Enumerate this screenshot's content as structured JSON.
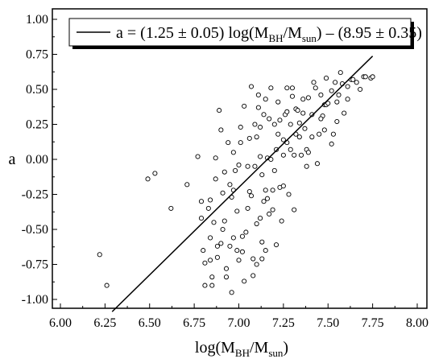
{
  "chart_data": {
    "type": "scatter",
    "xlabel": {
      "prefix": "log(M",
      "sub1": "BH",
      "mid": "/M",
      "sub2": "sun",
      "suffix": ")"
    },
    "ylabel": "a",
    "xlim": [
      6.0,
      8.0
    ],
    "ylim": [
      -1.1,
      1.1
    ],
    "x_ticks": [
      "6.00",
      "6.25",
      "6.50",
      "6.75",
      "7.00",
      "7.25",
      "7.50",
      "7.75",
      "8.00"
    ],
    "y_ticks": [
      "-1.00",
      "-0.75",
      "-0.50",
      "-0.25",
      "0.00",
      "0.25",
      "0.50",
      "0.75",
      "1.00"
    ],
    "grid": false,
    "legend": {
      "placement": "top-right",
      "prefix": "a = (1.25 ± 0.05) log(M",
      "sub1": "BH",
      "mid": "/M",
      "sub2": "sun",
      "suffix": ") – (8.95 ± 0.35)"
    },
    "fit_line": {
      "slope": 1.25,
      "intercept": -8.95,
      "x_range": [
        6.29,
        7.75
      ]
    },
    "series": [
      {
        "marker": "open-circle",
        "points": [
          [
            6.22,
            -0.68
          ],
          [
            6.26,
            -0.9
          ],
          [
            6.49,
            -0.14
          ],
          [
            6.53,
            -0.1
          ],
          [
            6.62,
            -0.35
          ],
          [
            6.71,
            -0.18
          ],
          [
            6.77,
            0.02
          ],
          [
            6.79,
            -0.3
          ],
          [
            6.79,
            -0.42
          ],
          [
            6.8,
            -0.65
          ],
          [
            6.81,
            -0.74
          ],
          [
            6.81,
            -0.9
          ],
          [
            6.83,
            -0.35
          ],
          [
            6.84,
            -0.29
          ],
          [
            6.84,
            -0.56
          ],
          [
            6.84,
            -0.72
          ],
          [
            6.85,
            -0.9
          ],
          [
            6.85,
            -0.84
          ],
          [
            6.87,
            -0.14
          ],
          [
            6.88,
            -0.7
          ],
          [
            6.88,
            -0.62
          ],
          [
            6.89,
            0.35
          ],
          [
            6.9,
            -0.6
          ],
          [
            6.91,
            -0.5
          ],
          [
            6.91,
            -0.24
          ],
          [
            6.92,
            -0.44
          ],
          [
            6.93,
            -0.78
          ],
          [
            6.93,
            -0.84
          ],
          [
            6.94,
            0.12
          ],
          [
            6.95,
            -0.62
          ],
          [
            6.95,
            -0.18
          ],
          [
            6.96,
            -0.95
          ],
          [
            6.97,
            -0.56
          ],
          [
            6.97,
            -0.22
          ],
          [
            6.98,
            -0.08
          ],
          [
            6.99,
            -0.37
          ],
          [
            7.0,
            -0.04
          ],
          [
            7.0,
            -0.72
          ],
          [
            7.01,
            0.23
          ],
          [
            7.02,
            -0.66
          ],
          [
            7.03,
            -0.87
          ],
          [
            7.04,
            -0.52
          ],
          [
            7.05,
            -0.05
          ],
          [
            7.06,
            0.15
          ],
          [
            7.06,
            -0.23
          ],
          [
            7.07,
            -0.26
          ],
          [
            7.08,
            -0.71
          ],
          [
            7.08,
            -0.83
          ],
          [
            7.09,
            0.25
          ],
          [
            7.09,
            -0.05
          ],
          [
            7.1,
            0.16
          ],
          [
            7.1,
            -0.46
          ],
          [
            7.1,
            -0.75
          ],
          [
            7.11,
            0.46
          ],
          [
            7.11,
            0.37
          ],
          [
            7.12,
            0.23
          ],
          [
            7.12,
            0.02
          ],
          [
            7.13,
            -0.11
          ],
          [
            7.13,
            -0.59
          ],
          [
            7.13,
            -0.71
          ],
          [
            7.14,
            0.32
          ],
          [
            7.15,
            0.43
          ],
          [
            7.15,
            -0.22
          ],
          [
            7.15,
            -0.65
          ],
          [
            7.16,
            0.01
          ],
          [
            7.17,
            0.29
          ],
          [
            7.17,
            -0.39
          ],
          [
            7.18,
            0.51
          ],
          [
            7.18,
            0.0
          ],
          [
            7.19,
            -0.22
          ],
          [
            7.19,
            -0.36
          ],
          [
            7.2,
            0.25
          ],
          [
            7.21,
            0.07
          ],
          [
            7.21,
            -0.61
          ],
          [
            7.22,
            0.41
          ],
          [
            7.22,
            0.18
          ],
          [
            7.23,
            -0.2
          ],
          [
            7.24,
            -0.44
          ],
          [
            7.25,
            0.14
          ],
          [
            7.25,
            0.03
          ],
          [
            7.25,
            -0.19
          ],
          [
            7.26,
            0.32
          ],
          [
            7.27,
            0.51
          ],
          [
            7.27,
            0.34
          ],
          [
            7.28,
            -0.25
          ],
          [
            7.29,
            0.25
          ],
          [
            7.3,
            0.51
          ],
          [
            7.3,
            0.45
          ],
          [
            7.31,
            0.03
          ],
          [
            7.31,
            -0.36
          ],
          [
            7.32,
            0.36
          ],
          [
            7.32,
            0.18
          ],
          [
            7.33,
            0.35
          ],
          [
            7.34,
            0.26
          ],
          [
            7.35,
            0.03
          ],
          [
            7.36,
            0.43
          ],
          [
            7.36,
            0.33
          ],
          [
            7.37,
            0.22
          ],
          [
            7.38,
            -0.05
          ],
          [
            7.38,
            0.07
          ],
          [
            7.39,
            0.05
          ],
          [
            7.39,
            0.44
          ],
          [
            7.41,
            0.32
          ],
          [
            7.42,
            0.55
          ],
          [
            7.44,
            -0.03
          ],
          [
            7.45,
            0.18
          ],
          [
            7.46,
            0.46
          ],
          [
            7.47,
            0.31
          ],
          [
            7.48,
            0.39
          ],
          [
            7.48,
            0.21
          ],
          [
            7.49,
            0.39
          ],
          [
            7.5,
            0.4
          ],
          [
            7.52,
            0.49
          ],
          [
            7.53,
            0.18
          ],
          [
            7.55,
            0.27
          ],
          [
            7.55,
            0.41
          ],
          [
            7.56,
            0.46
          ],
          [
            7.58,
            0.54
          ],
          [
            7.59,
            0.33
          ],
          [
            7.61,
            0.52
          ],
          [
            7.61,
            0.43
          ],
          [
            7.63,
            0.57
          ],
          [
            7.64,
            0.57
          ],
          [
            7.66,
            0.55
          ],
          [
            7.68,
            0.5
          ],
          [
            7.7,
            0.59
          ],
          [
            7.71,
            0.59
          ],
          [
            7.74,
            0.58
          ],
          [
            7.75,
            0.59
          ],
          [
            7.57,
            0.62
          ],
          [
            7.49,
            0.58
          ],
          [
            7.54,
            0.55
          ],
          [
            7.52,
            0.11
          ],
          [
            7.46,
            0.29
          ],
          [
            7.43,
            0.51
          ],
          [
            7.41,
            0.16
          ],
          [
            7.34,
            0.16
          ],
          [
            7.29,
            0.07
          ],
          [
            7.27,
            0.12
          ],
          [
            7.23,
            0.28
          ],
          [
            7.2,
            -0.08
          ],
          [
            7.16,
            -0.28
          ],
          [
            7.14,
            -0.3
          ],
          [
            7.12,
            -0.42
          ],
          [
            7.05,
            -0.35
          ],
          [
            7.02,
            -0.55
          ],
          [
            6.99,
            -0.65
          ],
          [
            6.96,
            -0.27
          ],
          [
            6.92,
            -0.09
          ],
          [
            6.9,
            0.21
          ],
          [
            6.87,
            0.01
          ],
          [
            6.86,
            -0.45
          ],
          [
            7.07,
            0.52
          ],
          [
            7.03,
            0.38
          ],
          [
            7.01,
            0.12
          ],
          [
            6.97,
            0.05
          ]
        ]
      }
    ]
  }
}
